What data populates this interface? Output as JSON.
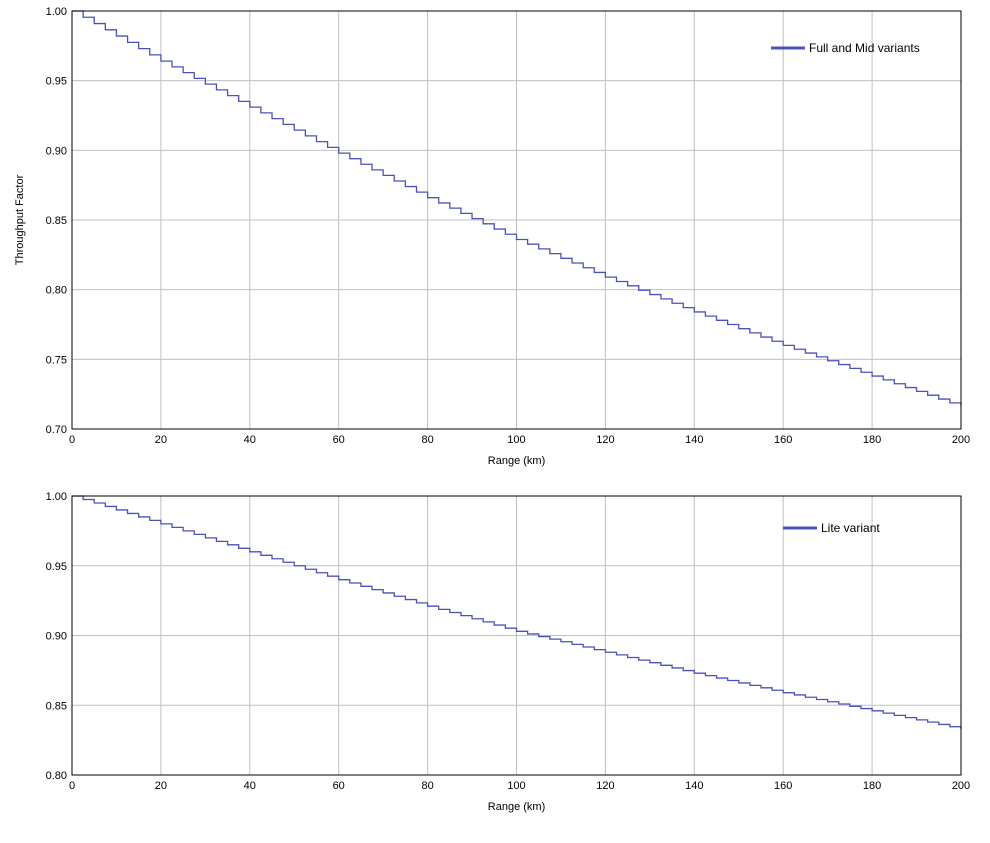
{
  "chart_data": [
    {
      "type": "line",
      "title": "",
      "xlabel": "Range (km)",
      "ylabel": "Throughput Factor",
      "xlim": [
        0,
        200
      ],
      "ylim": [
        0.7,
        1.0
      ],
      "xticks": [
        "0",
        "20",
        "40",
        "60",
        "80",
        "100",
        "120",
        "140",
        "160",
        "180",
        "200"
      ],
      "yticks": [
        "0.70",
        "0.75",
        "0.80",
        "0.85",
        "0.90",
        "0.95",
        "1.00"
      ],
      "grid": true,
      "legend_position": "top-right",
      "series": [
        {
          "name": "Full and Mid variants",
          "color": "#4b52b5",
          "line_style": "step",
          "step_km": 2.5,
          "x": [
            0,
            20,
            40,
            60,
            80,
            100,
            120,
            140,
            160,
            180,
            200
          ],
          "y": [
            1.0,
            0.964,
            0.931,
            0.898,
            0.866,
            0.836,
            0.809,
            0.784,
            0.76,
            0.738,
            0.716
          ]
        }
      ]
    },
    {
      "type": "line",
      "title": "",
      "xlabel": "Range (km)",
      "ylabel": "",
      "xlim": [
        0,
        200
      ],
      "ylim": [
        0.8,
        1.0
      ],
      "xticks": [
        "0",
        "20",
        "40",
        "60",
        "80",
        "100",
        "120",
        "140",
        "160",
        "180",
        "200"
      ],
      "yticks": [
        "0.80",
        "0.85",
        "0.90",
        "0.95",
        "1.00"
      ],
      "grid": true,
      "legend_position": "top-right",
      "series": [
        {
          "name": "Lite variant",
          "color": "#4b52b5",
          "line_style": "step",
          "step_km": 2.5,
          "x": [
            0,
            20,
            40,
            60,
            80,
            100,
            120,
            140,
            160,
            180,
            200
          ],
          "y": [
            1.0,
            0.98,
            0.96,
            0.94,
            0.921,
            0.903,
            0.888,
            0.873,
            0.859,
            0.846,
            0.833
          ]
        }
      ]
    }
  ]
}
